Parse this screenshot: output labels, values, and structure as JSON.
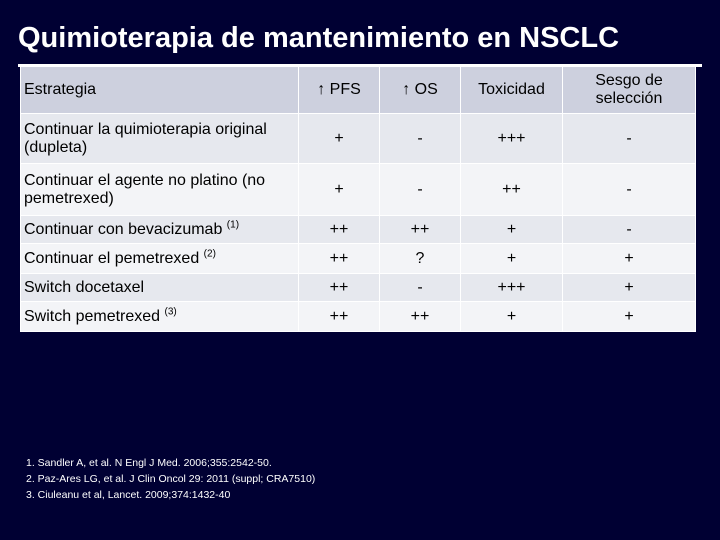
{
  "title": "Quimioterapia de mantenimiento en NSCLC",
  "table": {
    "headers": [
      "Estrategia",
      "↑ PFS",
      "↑ OS",
      "Toxicidad",
      "Sesgo de selección"
    ],
    "rows": [
      {
        "label": "Continuar la quimioterapia original (dupleta)",
        "sup": "",
        "pfs": "+",
        "os": "-",
        "tox": "+++",
        "sesgo": "-"
      },
      {
        "label": "Continuar el agente no platino (no pemetrexed)",
        "sup": "",
        "pfs": "+",
        "os": "-",
        "tox": "++",
        "sesgo": "-"
      },
      {
        "label": "Continuar con bevacizumab",
        "sup": "(1)",
        "pfs": "++",
        "os": "++",
        "tox": "+",
        "sesgo": "-"
      },
      {
        "label": "Continuar el pemetrexed",
        "sup": "(2)",
        "pfs": "++",
        "os": "?",
        "tox": "+",
        "sesgo": "+"
      },
      {
        "label": "Switch docetaxel",
        "sup": "",
        "pfs": "++",
        "os": "-",
        "tox": "+++",
        "sesgo": "+"
      },
      {
        "label": "Switch pemetrexed",
        "sup": "(3)",
        "pfs": "++",
        "os": "++",
        "tox": "+",
        "sesgo": "+"
      }
    ]
  },
  "references": [
    "1. Sandler A, et al. N Engl J Med. 2006;355:2542-50.",
    "2. Paz-Ares LG, et al. J Clin Oncol 29: 2011 (suppl; CRA7510)",
    "3. Ciuleanu et al, Lancet. 2009;374:1432-40"
  ]
}
